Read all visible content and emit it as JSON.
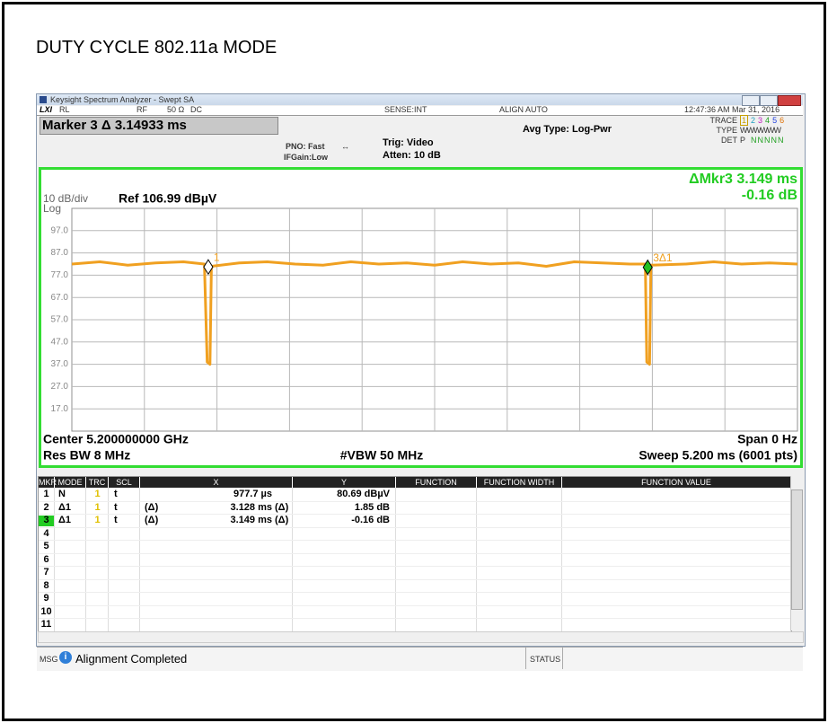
{
  "title": "DUTY CYCLE 802.11a MODE",
  "window": {
    "title": "Keysight Spectrum Analyzer - Swept SA"
  },
  "status_row": {
    "rl": "RL",
    "rf": "RF",
    "impedance": "50 Ω",
    "coupling": "DC",
    "sense": "SENSE:INT",
    "align": "ALIGN AUTO",
    "time": "12:47:36 AM Mar 31, 2016"
  },
  "settings": {
    "marker": "Marker 3 Δ 3.14933 ms",
    "pno": "PNO: Fast",
    "ifgain": "IFGain:Low",
    "trig": "Trig: Video",
    "atten": "Atten: 10 dB",
    "avg": "Avg Type: Log-Pwr",
    "trace_label": "TRACE",
    "trace_numbers": [
      "1",
      "2",
      "3",
      "4",
      "5",
      "6"
    ],
    "trace_colors": [
      "#c8a000",
      "#20a0c0",
      "#c020c0",
      "#20a020",
      "#2040e0",
      "#e07000"
    ],
    "type_label": "TYPE",
    "type_value": "WWWWWW",
    "det_label": "DET",
    "det_first": "P",
    "det_rest": "NNNNN"
  },
  "chart_data": {
    "type": "line",
    "scale_label": "10 dB/div",
    "scale_type": "Log",
    "ref": "Ref 106.99 dBµV",
    "delta_marker": "ΔMkr3 3.149 ms",
    "delta_value": "-0.16 dB",
    "ylim": [
      6.99,
      106.99
    ],
    "yticks": [
      {
        "value": 96.99,
        "label": "97.0"
      },
      {
        "value": 86.99,
        "label": "87.0"
      },
      {
        "value": 76.99,
        "label": "77.0"
      },
      {
        "value": 66.99,
        "label": "67.0"
      },
      {
        "value": 56.99,
        "label": "57.0"
      },
      {
        "value": 46.99,
        "label": "47.0"
      },
      {
        "value": 36.99,
        "label": "37.0"
      },
      {
        "value": 26.99,
        "label": "27.0"
      },
      {
        "value": 16.99,
        "label": "17.0"
      }
    ],
    "xlim": [
      0,
      5.2
    ],
    "x_divisions": 10,
    "grid": true,
    "trace": {
      "color": "#f0a020",
      "x": [
        0,
        0.2,
        0.4,
        0.6,
        0.8,
        0.95,
        0.97,
        0.99,
        1.0,
        1.2,
        1.4,
        1.6,
        1.8,
        2.0,
        2.2,
        2.4,
        2.6,
        2.8,
        3.0,
        3.2,
        3.4,
        3.6,
        3.8,
        4.0,
        4.11,
        4.12,
        4.14,
        4.15,
        4.4,
        4.6,
        4.8,
        5.0,
        5.2
      ],
      "values": [
        82,
        83,
        81.5,
        82.5,
        83,
        82,
        38,
        37,
        81,
        82.5,
        83,
        82,
        81.5,
        83,
        82,
        82.5,
        81.5,
        83,
        82,
        82.5,
        81,
        83,
        82.5,
        82,
        82,
        38,
        37,
        81.5,
        82,
        83,
        82,
        82.5,
        82
      ]
    },
    "markers": [
      {
        "label": "1",
        "x": 0.9777,
        "y": 80.69,
        "color": "#ffffff"
      },
      {
        "label": "3Δ1",
        "x": 4.1267,
        "y": 80.53,
        "color": "#22c022"
      }
    ],
    "center": "Center 5.200000000 GHz",
    "span": "Span 0 Hz",
    "rbw": "Res BW 8 MHz",
    "vbw": "#VBW 50 MHz",
    "sweep": "Sweep  5.200 ms (6001 pts)"
  },
  "table": {
    "headers": [
      "MKR",
      "MODE",
      "TRC",
      "SCL",
      "X",
      "Y",
      "FUNCTION",
      "FUNCTION WIDTH",
      "FUNCTION VALUE"
    ],
    "rows": [
      {
        "mkr": "1",
        "mode": "N",
        "trc": "1",
        "scl": "t",
        "x": "977.7 µs",
        "y": "80.69 dBµV"
      },
      {
        "mkr": "2",
        "mode": "Δ1",
        "trc": "1",
        "scl": "t",
        "x_mode": "(Δ)",
        "x": "3.128 ms",
        "y_mode": "(Δ)",
        "y": "1.85 dB"
      },
      {
        "mkr": "3",
        "mode": "Δ1",
        "trc": "1",
        "scl": "t",
        "x_mode": "(Δ)",
        "x": "3.149 ms",
        "y_mode": "(Δ)",
        "y": "-0.16 dB"
      },
      {
        "mkr": "4"
      },
      {
        "mkr": "5"
      },
      {
        "mkr": "6"
      },
      {
        "mkr": "7"
      },
      {
        "mkr": "8"
      },
      {
        "mkr": "9"
      },
      {
        "mkr": "10"
      },
      {
        "mkr": "11"
      }
    ]
  },
  "status": {
    "msg": "MSG",
    "message": "Alignment Completed",
    "status": "STATUS"
  }
}
